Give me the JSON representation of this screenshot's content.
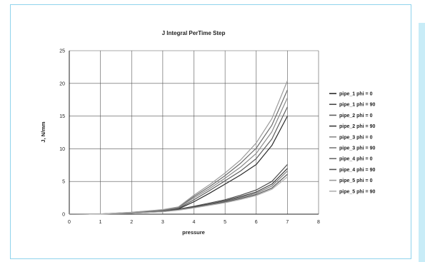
{
  "chart_data": {
    "type": "line",
    "title": "J Integral PerTime Step",
    "xlabel": "pressure",
    "ylabel": "J, N/mm",
    "xlim": [
      0,
      8
    ],
    "ylim": [
      0,
      25
    ],
    "xticks": [
      0,
      1,
      2,
      3,
      4,
      5,
      6,
      7,
      8
    ],
    "yticks": [
      0,
      5,
      10,
      15,
      20,
      25
    ],
    "grid": true,
    "legend_position": "right",
    "x": [
      0,
      1,
      2,
      3,
      3.5,
      4,
      4.5,
      5,
      5.5,
      6,
      6.5,
      7
    ],
    "series": [
      {
        "name": "pipe_1 phi = 0",
        "color": "#2a2a2a",
        "values": [
          0,
          0.02,
          0.2,
          0.5,
          0.8,
          1.9,
          3.2,
          4.6,
          6.0,
          7.6,
          10.5,
          15.0
        ]
      },
      {
        "name": "pipe_1 phi = 90",
        "color": "#4a4a4a",
        "values": [
          0,
          0.02,
          0.18,
          0.45,
          0.75,
          1.2,
          1.7,
          2.2,
          2.9,
          3.7,
          5.0,
          7.6
        ]
      },
      {
        "name": "pipe_2 phi = 0",
        "color": "#5e5e5e",
        "values": [
          0,
          0.02,
          0.22,
          0.55,
          0.9,
          2.2,
          3.6,
          5.1,
          6.6,
          8.5,
          11.5,
          16.4
        ]
      },
      {
        "name": "pipe_2 phi = 90",
        "color": "#3a3a3a",
        "values": [
          0,
          0.02,
          0.17,
          0.42,
          0.7,
          1.1,
          1.55,
          2.05,
          2.7,
          3.4,
          4.6,
          7.0
        ]
      },
      {
        "name": "pipe_3 phi = 0",
        "color": "#8a8a8a",
        "values": [
          0,
          0.03,
          0.25,
          0.6,
          1.0,
          2.5,
          3.9,
          5.5,
          7.2,
          9.3,
          12.6,
          17.8
        ]
      },
      {
        "name": "pipe_3 phi = 90",
        "color": "#7a7a7a",
        "values": [
          0,
          0.02,
          0.16,
          0.4,
          0.68,
          1.05,
          1.45,
          1.95,
          2.55,
          3.2,
          4.3,
          6.6
        ]
      },
      {
        "name": "pipe_4 phi = 0",
        "color": "#6a6a6a",
        "values": [
          0,
          0.03,
          0.27,
          0.65,
          1.05,
          2.7,
          4.2,
          5.9,
          7.8,
          10.1,
          13.6,
          19.0
        ]
      },
      {
        "name": "pipe_4 phi = 90",
        "color": "#555555",
        "values": [
          0,
          0.02,
          0.15,
          0.38,
          0.65,
          1.0,
          1.4,
          1.85,
          2.4,
          3.0,
          4.0,
          6.1
        ]
      },
      {
        "name": "pipe_5 phi = 0",
        "color": "#9a9a9a",
        "values": [
          0,
          0.03,
          0.28,
          0.7,
          1.1,
          2.9,
          4.5,
          6.3,
          8.3,
          10.9,
          14.6,
          20.4
        ]
      },
      {
        "name": "pipe_5 phi = 90",
        "color": "#b0b0b0",
        "values": [
          0,
          0.02,
          0.14,
          0.36,
          0.6,
          0.95,
          1.35,
          1.75,
          2.25,
          2.85,
          3.8,
          5.7
        ]
      }
    ]
  }
}
